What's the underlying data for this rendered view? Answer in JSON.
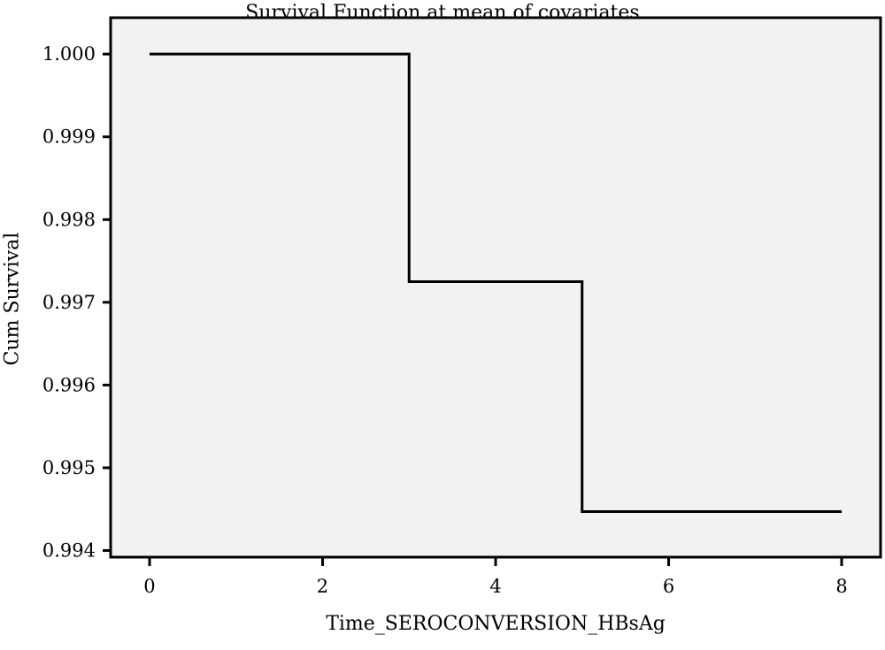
{
  "chart_data": {
    "type": "line",
    "title": "Survival Function at mean of covariates",
    "xlabel": "Time_SEROCONVERSION_HBsAg",
    "ylabel": "Cum Survival",
    "xlim": [
      -0.45,
      8.45
    ],
    "ylim": [
      0.99392,
      1.00044
    ],
    "x_ticks": [
      0,
      2,
      4,
      6,
      8
    ],
    "y_ticks": [
      1.0,
      0.999,
      0.998,
      0.997,
      0.996,
      0.995,
      0.994
    ],
    "x_tick_labels": [
      "0",
      "2",
      "4",
      "6",
      "8"
    ],
    "y_tick_labels": [
      "1.000",
      "0.999",
      "0.998",
      "0.997",
      "0.996",
      "0.995",
      "0.994"
    ],
    "grid": false,
    "step": true,
    "series": [
      {
        "x": [
          0,
          3,
          5,
          8
        ],
        "y": [
          1.0,
          0.99725,
          0.99447,
          0.99447
        ]
      }
    ],
    "colors": {
      "plot_background": "#f2f2f2",
      "line": "#000000",
      "axes": "#000000"
    }
  }
}
